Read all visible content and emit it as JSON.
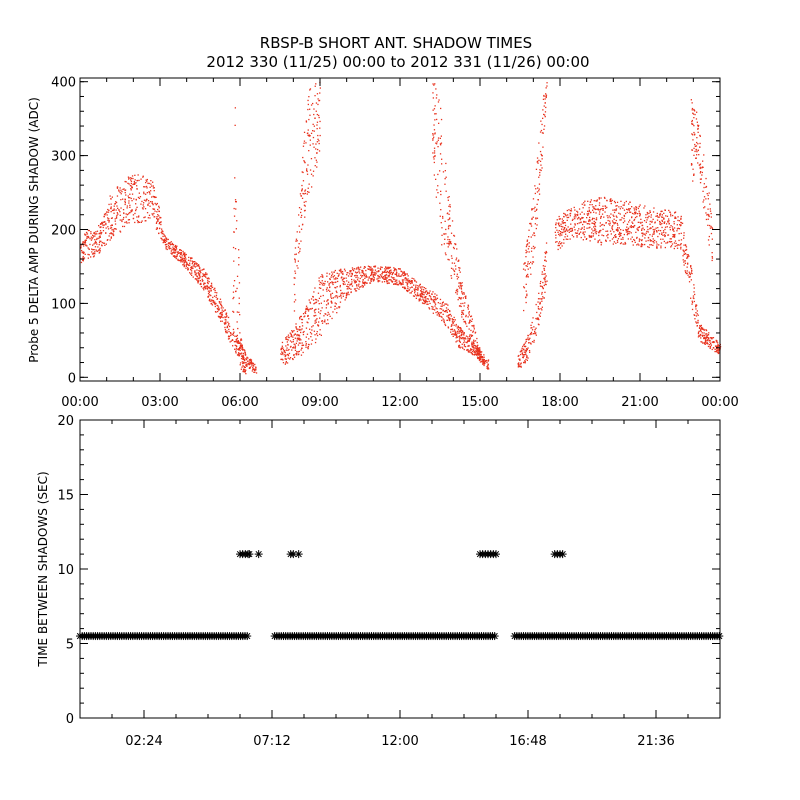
{
  "title_line1": "RBSP-B SHORT ANT. SHADOW TIMES",
  "title_line2": "2012 330 (11/25) 00:00 to 2012 331 (11/26) 00:00",
  "colors": {
    "top_series": "#e8321e",
    "bottom_series": "#000000",
    "axes": "#000000"
  },
  "chart_data": [
    {
      "type": "scatter",
      "title": "RBSP-B SHORT ANT. SHADOW TIMES",
      "ylabel": "Probe 5 DELTA AMP DURING SHADOW (ADC)",
      "xlabel": "",
      "xlim": [
        0,
        24
      ],
      "ylim": [
        -5,
        405
      ],
      "x_tick_values": [
        0,
        3,
        6,
        9,
        12,
        15,
        18,
        21,
        24
      ],
      "x_tick_labels": [
        "00:00",
        "03:00",
        "06:00",
        "09:00",
        "12:00",
        "15:00",
        "18:00",
        "21:00",
        "00:00"
      ],
      "y_ticks": [
        0,
        100,
        200,
        300,
        400
      ],
      "series_color": "#e8321e",
      "envelope": [
        {
          "segment": 1,
          "x": [
            0.0,
            0.6,
            1.2,
            2.0,
            2.7,
            3.2,
            3.9,
            4.6,
            5.2,
            5.7,
            6.2,
            6.6
          ],
          "lower": [
            155,
            165,
            190,
            210,
            210,
            175,
            150,
            120,
            80,
            40,
            15,
            5
          ],
          "upper": [
            200,
            200,
            255,
            278,
            270,
            190,
            170,
            150,
            110,
            70,
            35,
            15
          ]
        },
        {
          "segment": 2,
          "x": [
            5.7,
            5.8,
            6.0,
            6.2
          ],
          "lower": [
            40,
            100,
            10,
            5
          ],
          "upper": [
            80,
            380,
            60,
            10
          ]
        },
        {
          "segment": 3,
          "x": [
            7.5,
            8.0,
            8.5,
            9.0,
            10.0,
            11.0,
            12.0,
            13.0,
            13.6,
            14.2,
            14.8,
            15.3
          ],
          "lower": [
            15,
            25,
            35,
            55,
            110,
            130,
            125,
            95,
            75,
            40,
            30,
            10
          ],
          "upper": [
            50,
            70,
            100,
            140,
            150,
            152,
            148,
            120,
            110,
            70,
            45,
            25
          ]
        },
        {
          "segment": 4,
          "x": [
            8.0,
            8.3,
            8.6,
            9.0
          ],
          "lower": [
            80,
            200,
            250,
            300
          ],
          "upper": [
            150,
            300,
            400,
            405
          ]
        },
        {
          "segment": 5,
          "x": [
            13.2,
            13.5,
            13.8,
            14.3,
            15.0
          ],
          "lower": [
            300,
            180,
            150,
            80,
            20
          ],
          "upper": [
            405,
            380,
            250,
            130,
            40
          ]
        },
        {
          "segment": 6,
          "x": [
            16.4,
            16.8,
            17.2,
            17.5
          ],
          "lower": [
            10,
            25,
            70,
            130
          ],
          "upper": [
            30,
            60,
            120,
            190
          ]
        },
        {
          "segment": 7,
          "x": [
            16.6,
            17.0,
            17.3,
            17.5
          ],
          "lower": [
            80,
            160,
            280,
            400
          ],
          "upper": [
            150,
            250,
            370,
            405
          ]
        },
        {
          "segment": 8,
          "x": [
            17.8,
            18.5,
            19.5,
            20.5,
            21.5,
            22.5,
            22.9,
            23.2,
            23.6,
            24.0
          ],
          "lower": [
            170,
            190,
            180,
            180,
            175,
            175,
            100,
            50,
            40,
            30
          ],
          "upper": [
            215,
            235,
            245,
            240,
            230,
            225,
            150,
            75,
            60,
            45
          ]
        },
        {
          "segment": 9,
          "x": [
            22.9,
            23.1,
            23.4,
            23.7
          ],
          "lower": [
            250,
            300,
            220,
            150
          ],
          "upper": [
            380,
            360,
            300,
            220
          ]
        }
      ]
    },
    {
      "type": "scatter",
      "ylabel": "TIME BETWEEN SHADOWS (SEC)",
      "xlabel": "",
      "xlim": [
        0,
        24
      ],
      "ylim": [
        0,
        20
      ],
      "x_tick_values": [
        2.4,
        7.2,
        12.0,
        16.8,
        21.6
      ],
      "x_tick_labels": [
        "02:24",
        "07:12",
        "12:00",
        "16:48",
        "21:36"
      ],
      "y_ticks": [
        0,
        5,
        10,
        15,
        20
      ],
      "marker": "asterisk",
      "series_color": "#000000",
      "baseline_value_sec": 5.5,
      "baseline_segments_hours": [
        [
          0.0,
          6.35
        ],
        [
          7.3,
          15.6
        ],
        [
          16.3,
          24.0
        ]
      ],
      "outliers": [
        {
          "x": 6.0,
          "y": 11.0
        },
        {
          "x": 6.1,
          "y": 11.0
        },
        {
          "x": 6.2,
          "y": 11.0
        },
        {
          "x": 6.3,
          "y": 11.0
        },
        {
          "x": 6.35,
          "y": 11.0
        },
        {
          "x": 6.7,
          "y": 11.0
        },
        {
          "x": 7.9,
          "y": 11.0
        },
        {
          "x": 8.0,
          "y": 11.0
        },
        {
          "x": 8.2,
          "y": 11.0
        },
        {
          "x": 15.0,
          "y": 11.0
        },
        {
          "x": 15.1,
          "y": 11.0
        },
        {
          "x": 15.2,
          "y": 11.0
        },
        {
          "x": 15.3,
          "y": 11.0
        },
        {
          "x": 15.4,
          "y": 11.0
        },
        {
          "x": 15.5,
          "y": 11.0
        },
        {
          "x": 15.6,
          "y": 11.0
        },
        {
          "x": 17.8,
          "y": 11.0
        },
        {
          "x": 17.9,
          "y": 11.0
        },
        {
          "x": 18.0,
          "y": 11.0
        },
        {
          "x": 18.1,
          "y": 11.0
        }
      ]
    }
  ]
}
